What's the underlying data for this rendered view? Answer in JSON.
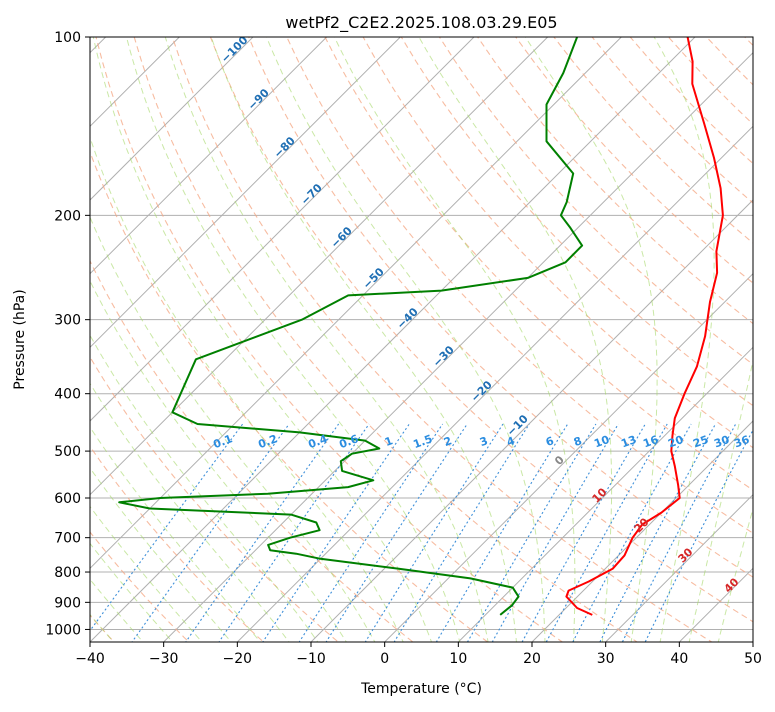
{
  "title": "wetPf2_C2E2.2025.108.03.29.E05",
  "chart_data": {
    "type": "skew-t",
    "title": "wetPf2_C2E2.2025.108.03.29.E05",
    "xlabel": "Temperature (°C)",
    "ylabel": "Pressure (hPa)",
    "xlim": [
      -40,
      50
    ],
    "ylim": [
      1050,
      100
    ],
    "y_scale": "log",
    "grid": true,
    "x_ticks": [
      "−40",
      "−30",
      "−20",
      "−10",
      "0",
      "10",
      "20",
      "30",
      "40",
      "50"
    ],
    "y_ticks": [
      "100",
      "200",
      "300",
      "400",
      "500",
      "600",
      "700",
      "800",
      "900",
      "1000"
    ],
    "temperature": {
      "color": "#ff0000",
      "points": [
        [
          945,
          24.5
        ],
        [
          920,
          21.5
        ],
        [
          880,
          18.5
        ],
        [
          860,
          18.0
        ],
        [
          830,
          19.5
        ],
        [
          790,
          21.0
        ],
        [
          750,
          20.8
        ],
        [
          700,
          19.5
        ],
        [
          665,
          19.0
        ],
        [
          635,
          20.0
        ],
        [
          600,
          20.5
        ],
        [
          570,
          18.5
        ],
        [
          530,
          15.5
        ],
        [
          500,
          13.0
        ],
        [
          470,
          11.0
        ],
        [
          440,
          9.0
        ],
        [
          400,
          7.0
        ],
        [
          360,
          5.0
        ],
        [
          320,
          2.0
        ],
        [
          280,
          -2.0
        ],
        [
          250,
          -5.0
        ],
        [
          230,
          -8.0
        ],
        [
          200,
          -12.0
        ],
        [
          180,
          -16.0
        ],
        [
          160,
          -21.0
        ],
        [
          140,
          -27.0
        ],
        [
          120,
          -34.0
        ],
        [
          110,
          -37.0
        ],
        [
          100,
          -41.0
        ]
      ]
    },
    "dewpoint": {
      "color": "#008000",
      "points": [
        [
          945,
          12.0
        ],
        [
          910,
          12.3
        ],
        [
          880,
          12.0
        ],
        [
          850,
          10.0
        ],
        [
          820,
          3.0
        ],
        [
          790,
          -8.0
        ],
        [
          760,
          -20.0
        ],
        [
          745,
          -24.0
        ],
        [
          735,
          -28.0
        ],
        [
          720,
          -29.0
        ],
        [
          700,
          -27.0
        ],
        [
          680,
          -24.0
        ],
        [
          660,
          -25.5
        ],
        [
          640,
          -30.0
        ],
        [
          625,
          -50.0
        ],
        [
          610,
          -55.0
        ],
        [
          600,
          -50.0
        ],
        [
          590,
          -36.0
        ],
        [
          575,
          -26.0
        ],
        [
          560,
          -23.5
        ],
        [
          540,
          -29.0
        ],
        [
          520,
          -30.5
        ],
        [
          505,
          -30.0
        ],
        [
          495,
          -27.0
        ],
        [
          480,
          -30.0
        ],
        [
          465,
          -40.0
        ],
        [
          450,
          -55.0
        ],
        [
          430,
          -60.0
        ],
        [
          350,
          -64.0
        ],
        [
          300,
          -55.0
        ],
        [
          273,
          -52.0
        ],
        [
          268,
          -40.0
        ],
        [
          255,
          -30.0
        ],
        [
          240,
          -27.0
        ],
        [
          225,
          -27.0
        ],
        [
          210,
          -31.0
        ],
        [
          200,
          -34.0
        ],
        [
          190,
          -35.0
        ],
        [
          170,
          -38.0
        ],
        [
          150,
          -46.0
        ],
        [
          130,
          -51.0
        ],
        [
          115,
          -53.0
        ],
        [
          100,
          -56.0
        ]
      ]
    },
    "dry_adiabat_labels": [
      "−100",
      "−90",
      "−80",
      "−70",
      "−60",
      "−50",
      "−40",
      "−30",
      "−20",
      "−10",
      "0",
      "10",
      "20",
      "30",
      "40"
    ],
    "dry_adiabat_values": [
      -100,
      -90,
      -80,
      -70,
      -60,
      -50,
      -40,
      -30,
      -20,
      -10,
      0,
      10,
      20,
      30,
      40
    ],
    "mixing_ratio_labels": [
      "0.1",
      "0.2",
      "0.4",
      "0.6",
      "1",
      "1.5",
      "2",
      "3",
      "4",
      "6",
      "8",
      "10",
      "13",
      "16",
      "20",
      "25",
      "30",
      "36"
    ],
    "mixing_ratio_values": [
      0.1,
      0.2,
      0.4,
      0.6,
      1,
      1.5,
      2,
      3,
      4,
      6,
      8,
      10,
      13,
      16,
      20,
      25,
      30,
      36
    ],
    "colors": {
      "temperature": "#ff0000",
      "dewpoint": "#008000",
      "dry_adiabat": "#f4a582",
      "moist_adiabat": "#a6d96a",
      "mixing_ratio": "#1f77b4",
      "isotherm": "#888888",
      "label_blue": "#1f6fb4",
      "label_red": "#d62728"
    }
  }
}
